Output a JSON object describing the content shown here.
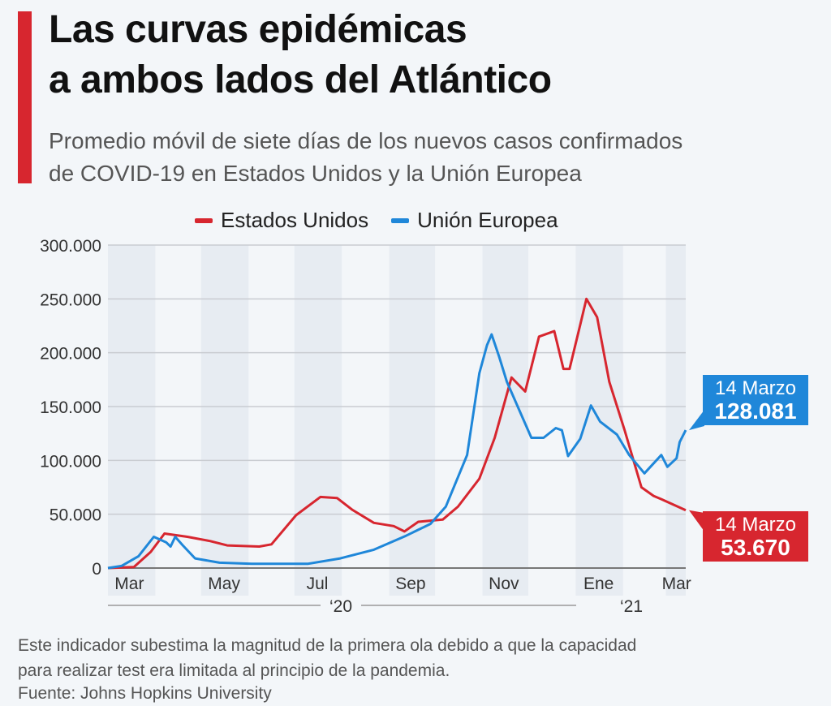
{
  "title_line1": "Las curvas epidémicas",
  "title_line2": "a ambos lados del Atlántico",
  "subtitle_line1": "Promedio móvil de siete días de los nuevos casos confirmados",
  "subtitle_line2": "de COVID-19 en Estados Unidos y la Unión Europea",
  "footnote_line1": "Este indicador subestima la magnitud de la primera ola debido a que la capacidad",
  "footnote_line2": "para realizar test era limitada al principio de la pandemia.",
  "source": "Fuente: Johns Hopkins University",
  "colors": {
    "us": "#d7262f",
    "eu": "#1f87d9",
    "band": "#e7ecf2",
    "grid": "#c9ccd1"
  },
  "callouts": {
    "eu": {
      "date": "14 Marzo",
      "value": "128.081"
    },
    "us": {
      "date": "14 Marzo",
      "value": "53.670"
    }
  },
  "chart_data": {
    "type": "line",
    "title": "Las curvas epidémicas a ambos lados del Atlántico",
    "ylim": [
      0,
      300000
    ],
    "xlim": [
      "2020-03-01",
      "2021-03-14"
    ],
    "yticks": [
      0,
      50000,
      100000,
      150000,
      200000,
      250000,
      300000
    ],
    "ytick_labels": [
      "0",
      "50.000",
      "100.000",
      "150.000",
      "200.000",
      "250.000",
      "300.000"
    ],
    "xtick_labels": [
      {
        "label": "Mar",
        "date": "2020-03-15"
      },
      {
        "label": "May",
        "date": "2020-05-16"
      },
      {
        "label": "Jul",
        "date": "2020-07-16"
      },
      {
        "label": "Sep",
        "date": "2020-09-15"
      },
      {
        "label": "Nov",
        "date": "2020-11-15"
      },
      {
        "label": "Ene",
        "date": "2021-01-16"
      },
      {
        "label": "Mar",
        "date": "2021-03-08"
      }
    ],
    "year_labels": [
      "‘20",
      "‘21"
    ],
    "grid": true,
    "legend": "top",
    "series": [
      {
        "name": "Estados Unidos",
        "color": "#d7262f",
        "points": [
          [
            "2020-03-01",
            0
          ],
          [
            "2020-03-18",
            1000
          ],
          [
            "2020-03-29",
            15000
          ],
          [
            "2020-04-07",
            32000
          ],
          [
            "2020-04-22",
            29000
          ],
          [
            "2020-05-07",
            25000
          ],
          [
            "2020-05-18",
            21000
          ],
          [
            "2020-06-08",
            20000
          ],
          [
            "2020-06-16",
            22000
          ],
          [
            "2020-07-02",
            49000
          ],
          [
            "2020-07-18",
            66000
          ],
          [
            "2020-07-29",
            65000
          ],
          [
            "2020-08-08",
            54000
          ],
          [
            "2020-08-22",
            42000
          ],
          [
            "2020-09-04",
            39000
          ],
          [
            "2020-09-11",
            34000
          ],
          [
            "2020-09-20",
            43000
          ],
          [
            "2020-10-06",
            45000
          ],
          [
            "2020-10-16",
            57000
          ],
          [
            "2020-10-30",
            83000
          ],
          [
            "2020-11-09",
            121000
          ],
          [
            "2020-11-20",
            177000
          ],
          [
            "2020-11-29",
            164000
          ],
          [
            "2020-12-08",
            215000
          ],
          [
            "2020-12-18",
            220000
          ],
          [
            "2020-12-24",
            185000
          ],
          [
            "2020-12-28",
            185000
          ],
          [
            "2021-01-04",
            226000
          ],
          [
            "2021-01-08",
            250000
          ],
          [
            "2021-01-15",
            233000
          ],
          [
            "2021-01-23",
            173000
          ],
          [
            "2021-02-02",
            128000
          ],
          [
            "2021-02-13",
            75000
          ],
          [
            "2021-02-21",
            67000
          ],
          [
            "2021-02-26",
            64000
          ],
          [
            "2021-03-14",
            53670
          ]
        ]
      },
      {
        "name": "Unión Europea",
        "color": "#1f87d9",
        "points": [
          [
            "2020-03-01",
            0
          ],
          [
            "2020-03-10",
            2000
          ],
          [
            "2020-03-21",
            11000
          ],
          [
            "2020-03-31",
            29000
          ],
          [
            "2020-04-08",
            24000
          ],
          [
            "2020-04-11",
            20000
          ],
          [
            "2020-04-14",
            29000
          ],
          [
            "2020-04-19",
            21000
          ],
          [
            "2020-04-27",
            9000
          ],
          [
            "2020-05-13",
            5000
          ],
          [
            "2020-06-03",
            4000
          ],
          [
            "2020-07-10",
            4000
          ],
          [
            "2020-07-31",
            9000
          ],
          [
            "2020-08-22",
            17000
          ],
          [
            "2020-09-12",
            30000
          ],
          [
            "2020-09-28",
            41000
          ],
          [
            "2020-10-08",
            57000
          ],
          [
            "2020-10-22",
            105000
          ],
          [
            "2020-10-30",
            181000
          ],
          [
            "2020-11-04",
            207000
          ],
          [
            "2020-11-07",
            217000
          ],
          [
            "2020-11-12",
            196000
          ],
          [
            "2020-11-17",
            173000
          ],
          [
            "2020-11-25",
            147000
          ],
          [
            "2020-12-03",
            121000
          ],
          [
            "2020-12-11",
            121000
          ],
          [
            "2020-12-19",
            130000
          ],
          [
            "2020-12-23",
            128000
          ],
          [
            "2020-12-27",
            104000
          ],
          [
            "2021-01-04",
            120000
          ],
          [
            "2021-01-11",
            151000
          ],
          [
            "2021-01-17",
            136000
          ],
          [
            "2021-01-28",
            124000
          ],
          [
            "2021-02-05",
            105000
          ],
          [
            "2021-02-15",
            88000
          ],
          [
            "2021-02-26",
            105000
          ],
          [
            "2021-03-02",
            94000
          ],
          [
            "2021-03-08",
            102000
          ],
          [
            "2021-03-10",
            117000
          ],
          [
            "2021-03-14",
            128081
          ]
        ]
      }
    ]
  }
}
